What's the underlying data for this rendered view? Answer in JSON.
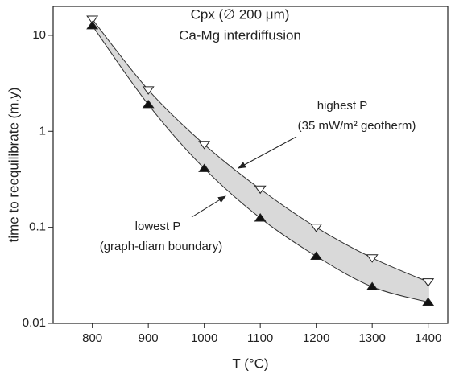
{
  "chart_data": {
    "type": "line",
    "title": "Cpx (∅ 200 μm)",
    "subtitle": "Ca-Mg interdiffusion",
    "x_label": "T (°C)",
    "y_label": "time to reequilibrate (m.y)",
    "x": [
      800,
      900,
      1000,
      1100,
      1200,
      1300,
      1400
    ],
    "series": [
      {
        "marker": "triangle-down",
        "color": "#ffffff",
        "values": [
          14.7,
          2.7,
          0.73,
          0.25,
          0.1,
          0.048,
          0.027
        ]
      },
      {
        "marker": "triangle-up",
        "color": "#111111",
        "values": [
          12.6,
          1.9,
          0.41,
          0.125,
          0.05,
          0.024,
          0.0166
        ]
      }
    ],
    "band_color": "#d9d9d9",
    "annotations": [
      "highest P",
      "(35 mW/m² geotherm)",
      "lowest P",
      "(graph-diam boundary)"
    ],
    "xlim": [
      730,
      1435
    ],
    "xticks": [
      800,
      900,
      1000,
      1100,
      1200,
      1300,
      1400
    ],
    "ylim": [
      0.01,
      20
    ],
    "yticks": [
      0.01,
      0.1,
      1,
      10
    ],
    "log_y": true
  }
}
